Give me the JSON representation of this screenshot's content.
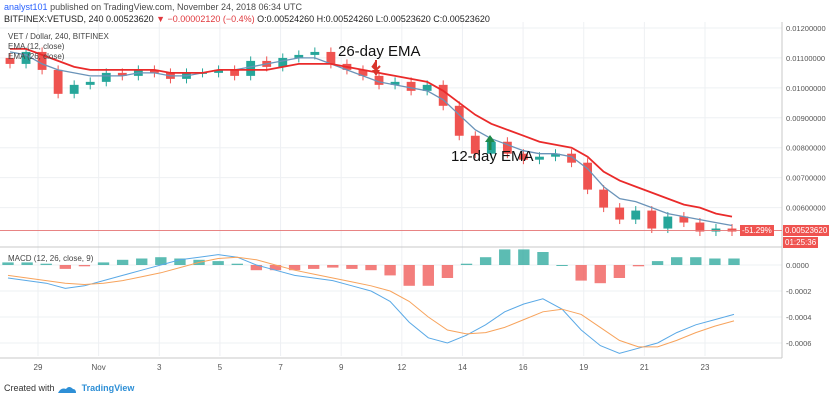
{
  "header": {
    "author": "analyst101",
    "published_text": "published on TradingView.com, November 24, 2018 06:34 UTC",
    "symbol_line": "BITFINEX:VETUSD, 240",
    "price": "0.00523620",
    "change": "▼ −0.00002120 (−0.4%)",
    "ohlc": "O:0.00524260 H:0.00524260 L:0.00523620 C:0.00523620"
  },
  "main_pane": {
    "title": "VET / Dollar, 240, BITFINEX",
    "indicator_1": "EMA (12, close)",
    "indicator_2": "EMA (26, close)"
  },
  "annotations": {
    "ema26_label": "26-day EMA",
    "ema12_label": "12-day EMA"
  },
  "price_tags": {
    "percent": "-51.29%",
    "last_price": "0.00523620",
    "countdown": "01:25:36"
  },
  "macd_pane": {
    "title": "MACD (12, 26, close, 9)"
  },
  "footer": {
    "created_with": "Created with",
    "brand": "TradingView"
  },
  "colors": {
    "up": "#26a69a",
    "down": "#ef5350",
    "ema12": "#6a93b8",
    "ema26": "#ea2a2a",
    "macd_line": "#5aa9e6",
    "signal_line": "#f7a35c"
  },
  "chart_data": [
    {
      "type": "candlestick",
      "title": "VET / Dollar, 240, BITFINEX",
      "x_ticks": [
        "29",
        "Nov",
        "3",
        "5",
        "7",
        "9",
        "12",
        "14",
        "16",
        "19",
        "21",
        "23"
      ],
      "y_ticks": [
        0.006,
        0.007,
        0.008,
        0.009,
        0.01,
        0.011,
        0.012
      ],
      "y_tick_labels": [
        "0.00600000",
        "0.00700000",
        "0.00800000",
        "0.00900000",
        "0.01000000",
        "0.01100000",
        "0.01200000"
      ],
      "ylim": [
        0.00475,
        0.0122
      ],
      "last_price": 0.0052362,
      "close_series": [
        0.0108,
        0.0112,
        0.0106,
        0.0098,
        0.0101,
        0.0102,
        0.0105,
        0.0104,
        0.0106,
        0.0105,
        0.0103,
        0.0105,
        0.0105,
        0.0106,
        0.0104,
        0.0109,
        0.0107,
        0.011,
        0.0111,
        0.0112,
        0.0108,
        0.0106,
        0.0104,
        0.0101,
        0.0102,
        0.0099,
        0.0101,
        0.0094,
        0.0084,
        0.0078,
        0.0082,
        0.0078,
        0.0076,
        0.0077,
        0.0078,
        0.0075,
        0.0066,
        0.006,
        0.0056,
        0.0059,
        0.0053,
        0.0057,
        0.0055,
        0.0052,
        0.0053,
        0.0052
      ],
      "ema12": [
        0.0112,
        0.0111,
        0.0108,
        0.0106,
        0.0105,
        0.0104,
        0.0104,
        0.0104,
        0.0105,
        0.0105,
        0.0104,
        0.0104,
        0.0105,
        0.0106,
        0.0106,
        0.0107,
        0.0108,
        0.0109,
        0.011,
        0.011,
        0.0108,
        0.0106,
        0.0104,
        0.0102,
        0.0101,
        0.01,
        0.0099,
        0.0096,
        0.0091,
        0.0086,
        0.0083,
        0.0081,
        0.0079,
        0.0078,
        0.0078,
        0.0077,
        0.0073,
        0.0067,
        0.0063,
        0.0062,
        0.006,
        0.0058,
        0.0057,
        0.0056,
        0.0055,
        0.0054
      ],
      "ema26": [
        0.0113,
        0.0113,
        0.0111,
        0.0109,
        0.0107,
        0.0106,
        0.0106,
        0.0106,
        0.0106,
        0.0106,
        0.0105,
        0.0105,
        0.0105,
        0.0106,
        0.0106,
        0.0106,
        0.0106,
        0.0107,
        0.0108,
        0.0108,
        0.0108,
        0.0107,
        0.0106,
        0.0105,
        0.0104,
        0.0103,
        0.0102,
        0.0099,
        0.0095,
        0.0091,
        0.0088,
        0.0086,
        0.0084,
        0.0082,
        0.0081,
        0.008,
        0.0077,
        0.0072,
        0.0069,
        0.0067,
        0.0065,
        0.0063,
        0.0061,
        0.006,
        0.0058,
        0.0057
      ]
    },
    {
      "type": "line",
      "title": "MACD (12, 26, close, 9)",
      "y_ticks": [
        0,
        -0.0002,
        -0.0004,
        -0.0006
      ],
      "y_tick_labels": [
        "0.0000",
        "-0.0002",
        "-0.0004",
        "-0.0006"
      ],
      "ylim": [
        -0.0007,
        0.0001
      ],
      "series": [
        {
          "name": "MACD",
          "values": [
            -0.0001,
            -0.00012,
            -0.00014,
            -0.00018,
            -0.00016,
            -0.00012,
            -8e-05,
            -4e-05,
            0,
            4e-05,
            6e-05,
            8e-05,
            6e-05,
            0,
            -4e-05,
            -8e-05,
            -0.0001,
            -0.00012,
            -0.00016,
            -0.0002,
            -0.00028,
            -0.00044,
            -0.00056,
            -0.0006,
            -0.00054,
            -0.00046,
            -0.00036,
            -0.0003,
            -0.00026,
            -0.00034,
            -0.0005,
            -0.00062,
            -0.00068,
            -0.00064,
            -0.0006,
            -0.00052,
            -0.00046,
            -0.00042,
            -0.00038
          ]
        },
        {
          "name": "Signal",
          "values": [
            -8e-05,
            -0.0001,
            -0.00012,
            -0.00014,
            -0.00015,
            -0.00014,
            -0.00012,
            -9e-05,
            -6e-05,
            -2e-05,
            2e-05,
            5e-05,
            6e-05,
            4e-05,
            0,
            -4e-05,
            -7e-05,
            -0.0001,
            -0.00013,
            -0.00016,
            -0.0002,
            -0.00028,
            -0.0004,
            -0.0005,
            -0.00053,
            -0.00052,
            -0.00048,
            -0.00042,
            -0.00036,
            -0.00034,
            -0.00038,
            -0.00048,
            -0.00058,
            -0.00063,
            -0.00063,
            -0.00058,
            -0.00052,
            -0.00047,
            -0.00043
          ]
        }
      ],
      "histogram": [
        2e-05,
        2e-05,
        1e-05,
        -3e-05,
        -1e-05,
        2e-05,
        4e-05,
        5e-05,
        6e-05,
        5e-05,
        4e-05,
        3e-05,
        1e-05,
        -4e-05,
        -4e-05,
        -4e-05,
        -3e-05,
        -2e-05,
        -3e-05,
        -4e-05,
        -8e-05,
        -0.00016,
        -0.00016,
        -0.0001,
        1e-05,
        6e-05,
        0.00012,
        0.00012,
        0.0001,
        0,
        -0.00012,
        -0.00014,
        -0.0001,
        -1e-05,
        3e-05,
        6e-05,
        6e-05,
        5e-05,
        5e-05
      ]
    }
  ]
}
